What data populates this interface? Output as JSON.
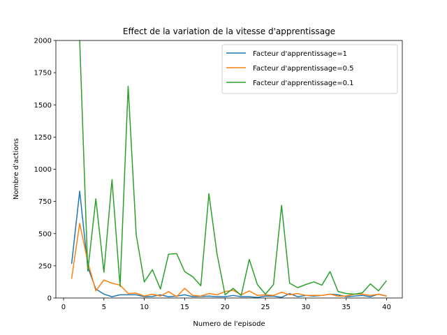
{
  "chart_data": {
    "type": "line",
    "title": "Effect de la variation de la vitesse d'apprentissage",
    "xlabel": "Numero de l'episode",
    "ylabel": "Nombre d'actions",
    "xlim": [
      -0.95,
      41.95
    ],
    "ylim": [
      0,
      2000
    ],
    "xticks": [
      0,
      5,
      10,
      15,
      20,
      25,
      30,
      35,
      40
    ],
    "yticks": [
      0,
      250,
      500,
      750,
      1000,
      1250,
      1500,
      1750,
      2000
    ],
    "grid": false,
    "legend_position": "top-right",
    "x": [
      1,
      2,
      3,
      4,
      5,
      6,
      7,
      8,
      9,
      10,
      11,
      12,
      13,
      14,
      15,
      16,
      17,
      18,
      19,
      20,
      21,
      22,
      23,
      24,
      25,
      26,
      27,
      28,
      29,
      30,
      31,
      32,
      33,
      34,
      35,
      36,
      37,
      38,
      39,
      40
    ],
    "series": [
      {
        "name": "Facteur d'apprentissage=1",
        "color": "#1f77b4",
        "values": [
          265,
          830,
          240,
          70,
          30,
          10,
          25,
          25,
          25,
          10,
          12,
          25,
          10,
          15,
          25,
          10,
          12,
          15,
          10,
          10,
          20,
          10,
          10,
          5,
          15,
          15,
          5,
          35,
          10,
          20,
          15,
          20,
          30,
          25,
          10,
          15,
          20,
          10,
          30,
          15
        ]
      },
      {
        "name": "Facteur d'apprentissage=0.5",
        "color": "#ff7f0e",
        "values": [
          150,
          580,
          280,
          55,
          140,
          115,
          100,
          35,
          38,
          15,
          30,
          15,
          50,
          10,
          75,
          20,
          15,
          35,
          25,
          50,
          60,
          25,
          55,
          20,
          25,
          20,
          45,
          25,
          35,
          20,
          20,
          20,
          30,
          15,
          15,
          30,
          30,
          20,
          30,
          15
        ]
      },
      {
        "name": "Facteur d'apprentissage=0.1",
        "color": "#2ca02c",
        "values": [
          null,
          2000,
          210,
          770,
          200,
          920,
          90,
          1645,
          490,
          125,
          220,
          70,
          340,
          345,
          205,
          165,
          95,
          810,
          345,
          25,
          75,
          20,
          300,
          105,
          30,
          105,
          720,
          115,
          80,
          105,
          125,
          100,
          205,
          50,
          35,
          30,
          40,
          110,
          55,
          135
        ]
      }
    ]
  }
}
